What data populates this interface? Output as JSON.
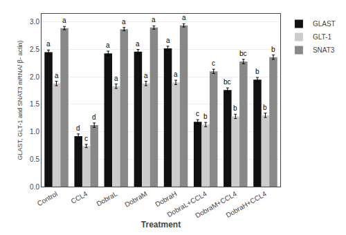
{
  "chart_data": {
    "type": "bar",
    "xlabel": "Treatment",
    "ylabel": "GLAST, GLT-1 and SNAT3 mRNA/ β- actin)",
    "categories": [
      "Control",
      "CCL4",
      "DobraL",
      "DobraM",
      "DobraH",
      "DobraL+CCL4",
      "DobraM+CCL4",
      "DobraH+CCL4"
    ],
    "series": [
      {
        "name": "GLAST",
        "color": "#111111",
        "values": [
          2.45,
          0.92,
          2.43,
          2.46,
          2.52,
          1.18,
          1.76,
          1.95
        ],
        "errors": [
          0.04,
          0.04,
          0.04,
          0.04,
          0.04,
          0.04,
          0.04,
          0.04
        ],
        "labels": [
          "a",
          "d",
          "a",
          "a",
          "a",
          "c",
          "bc",
          "b"
        ]
      },
      {
        "name": "GLT-1",
        "color": "#cccccc",
        "values": [
          1.88,
          0.74,
          1.83,
          1.88,
          1.9,
          1.13,
          1.28,
          1.3
        ],
        "errors": [
          0.04,
          0.03,
          0.04,
          0.04,
          0.04,
          0.04,
          0.04,
          0.04
        ],
        "labels": [
          "a",
          "c",
          "a",
          "a",
          "a",
          "b",
          "b",
          "b"
        ]
      },
      {
        "name": "SNAT3",
        "color": "#888888",
        "values": [
          2.89,
          1.12,
          2.87,
          2.9,
          2.94,
          2.1,
          2.28,
          2.36
        ],
        "errors": [
          0.03,
          0.04,
          0.03,
          0.03,
          0.03,
          0.04,
          0.04,
          0.04
        ],
        "labels": [
          "a",
          "d",
          "a",
          "a",
          "a",
          "c",
          "bc",
          "b"
        ]
      }
    ],
    "ylim": [
      0,
      3.15
    ],
    "yticks": [
      {
        "value": 0,
        "label": "0.0"
      },
      {
        "value": 0.5,
        "label": "0.5"
      },
      {
        "value": 1.0,
        "label": "1.0"
      },
      {
        "value": 1.5,
        "label": "1.5"
      },
      {
        "value": 2.0,
        "label": "2.0"
      },
      {
        "value": 2.5,
        "label": "2.5"
      },
      {
        "value": 3.0,
        "label": "3.0"
      }
    ],
    "grid": true,
    "legend": "upper right"
  }
}
